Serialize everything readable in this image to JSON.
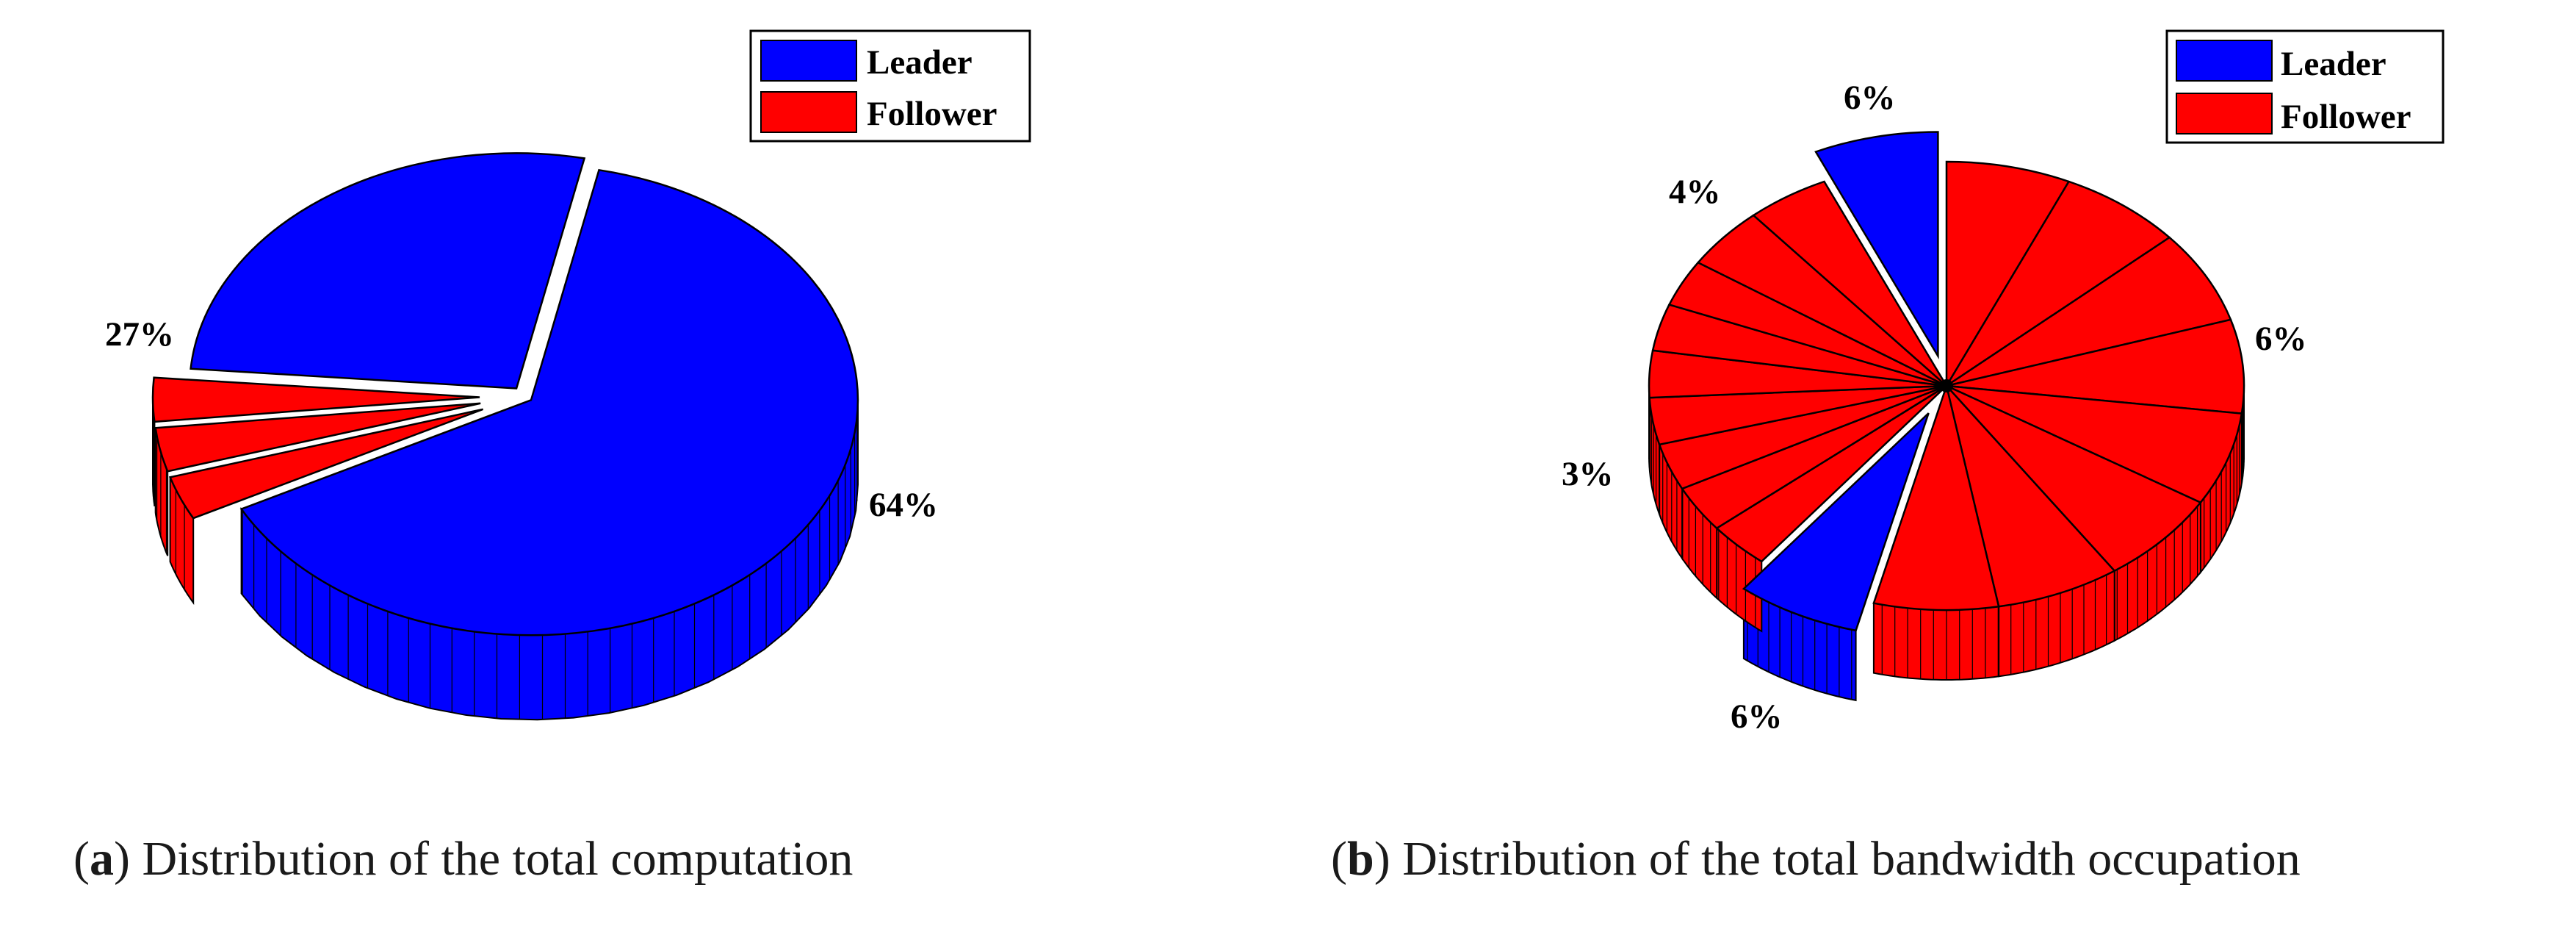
{
  "colors": {
    "leader": "#0000ff",
    "follower": "#ff0000",
    "outline": "#000000"
  },
  "chart_data": [
    {
      "type": "pie",
      "style": "3d-exploded",
      "caption": {
        "letter": "a",
        "text": "Distribution of the total computation"
      },
      "legend": {
        "placement": "top-right",
        "entries": [
          "Leader",
          "Follower"
        ]
      },
      "slices": [
        {
          "series": "Leader",
          "value": 64,
          "label": "64%"
        },
        {
          "series": "Follower",
          "value": 3,
          "label": ""
        },
        {
          "series": "Follower",
          "value": 3,
          "label": ""
        },
        {
          "series": "Follower",
          "value": 3,
          "label": ""
        },
        {
          "series": "Leader",
          "value": 27,
          "label": "27%"
        }
      ]
    },
    {
      "type": "pie",
      "style": "3d-exploded",
      "caption": {
        "letter": "b",
        "text": "Distribution of the total bandwidth occupation"
      },
      "legend": {
        "placement": "top-right",
        "entries": [
          "Leader",
          "Follower"
        ]
      },
      "slices": [
        {
          "series": "Follower",
          "value": 6,
          "label": ""
        },
        {
          "series": "Follower",
          "value": 6,
          "label": ""
        },
        {
          "series": "Follower",
          "value": 6,
          "label": "6%"
        },
        {
          "series": "Follower",
          "value": 6,
          "label": ""
        },
        {
          "series": "Follower",
          "value": 6,
          "label": ""
        },
        {
          "series": "Follower",
          "value": 6,
          "label": ""
        },
        {
          "series": "Follower",
          "value": 6,
          "label": ""
        },
        {
          "series": "Follower",
          "value": 6,
          "label": ""
        },
        {
          "series": "Leader",
          "value": 6,
          "label": "6%"
        },
        {
          "series": "Follower",
          "value": 3,
          "label": "3%"
        },
        {
          "series": "Follower",
          "value": 3,
          "label": ""
        },
        {
          "series": "Follower",
          "value": 3,
          "label": ""
        },
        {
          "series": "Follower",
          "value": 3,
          "label": ""
        },
        {
          "series": "Follower",
          "value": 3,
          "label": ""
        },
        {
          "series": "Follower",
          "value": 3,
          "label": ""
        },
        {
          "series": "Follower",
          "value": 3,
          "label": ""
        },
        {
          "series": "Follower",
          "value": 4,
          "label": "4%"
        },
        {
          "series": "Follower",
          "value": 4,
          "label": ""
        },
        {
          "series": "Leader",
          "value": 6,
          "label": "6%"
        }
      ]
    }
  ]
}
